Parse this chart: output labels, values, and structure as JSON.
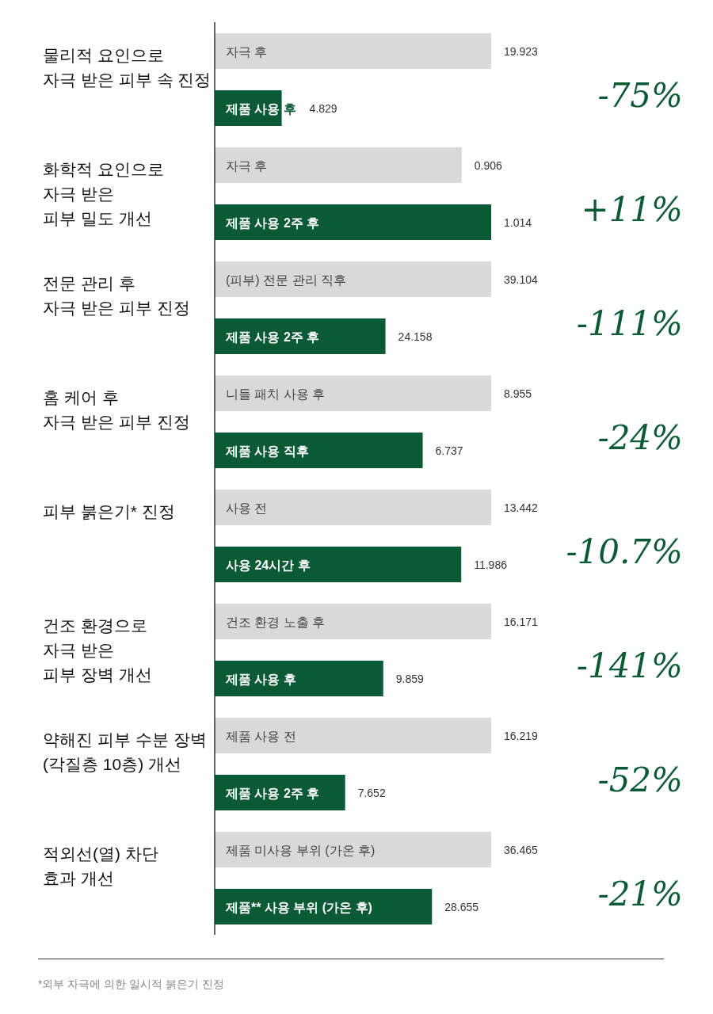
{
  "chart_data": [
    {
      "type": "bar",
      "orientation": "horizontal",
      "title": "물리적 요인으로\n자극 받은 피부 속 진정",
      "categories": [
        "자극 후",
        "제품 사용 후"
      ],
      "values": [
        19.923,
        4.829
      ],
      "colors": [
        "#d9d9d9",
        "#0b5a36"
      ],
      "data_labels": true,
      "annotations": [
        "-75%"
      ]
    },
    {
      "type": "bar",
      "orientation": "horizontal",
      "title": "화학적 요인으로\n자극 받은\n피부 밀도 개선",
      "categories": [
        "자극 후",
        "제품 사용 2주 후"
      ],
      "values": [
        0.906,
        1.014
      ],
      "colors": [
        "#d9d9d9",
        "#0b5a36"
      ],
      "data_labels": true,
      "annotations": [
        "+11%"
      ]
    },
    {
      "type": "bar",
      "orientation": "horizontal",
      "title": "전문 관리 후\n자극 받은 피부 진정",
      "categories": [
        "(피부) 전문 관리 직후",
        "제품 사용 2주 후"
      ],
      "values": [
        39.104,
        24.158
      ],
      "colors": [
        "#d9d9d9",
        "#0b5a36"
      ],
      "data_labels": true,
      "annotations": [
        "-111%"
      ]
    },
    {
      "type": "bar",
      "orientation": "horizontal",
      "title": "홈 케어 후\n자극 받은 피부 진정",
      "categories": [
        "니들 패치 사용 후",
        "제품 사용 직후"
      ],
      "values": [
        8.955,
        6.737
      ],
      "colors": [
        "#d9d9d9",
        "#0b5a36"
      ],
      "data_labels": true,
      "annotations": [
        "-24%"
      ]
    },
    {
      "type": "bar",
      "orientation": "horizontal",
      "title": "피부 붉은기* 진정",
      "categories": [
        "사용 전",
        "사용 24시간 후"
      ],
      "values": [
        13.442,
        11.986
      ],
      "colors": [
        "#d9d9d9",
        "#0b5a36"
      ],
      "data_labels": true,
      "annotations": [
        "-10.7%"
      ]
    },
    {
      "type": "bar",
      "orientation": "horizontal",
      "title": "건조 환경으로\n자극 받은\n피부 장벽 개선",
      "categories": [
        "건조 환경 노출 후",
        "제품 사용 후"
      ],
      "values": [
        16.171,
        9.859
      ],
      "colors": [
        "#d9d9d9",
        "#0b5a36"
      ],
      "data_labels": true,
      "annotations": [
        "-141%"
      ]
    },
    {
      "type": "bar",
      "orientation": "horizontal",
      "title": "약해진 피부 수분 장벽\n(각질층 10층) 개선",
      "categories": [
        "제품 사용 전",
        "제품 사용 2주 후"
      ],
      "values": [
        16.219,
        7.652
      ],
      "colors": [
        "#d9d9d9",
        "#0b5a36"
      ],
      "data_labels": true,
      "annotations": [
        "-52%"
      ]
    },
    {
      "type": "bar",
      "orientation": "horizontal",
      "title": "적외선(열) 차단\n효과 개선",
      "categories": [
        "제품 미사용 부위 (가온 후)",
        "제품** 사용 부위 (가온 후)"
      ],
      "values": [
        36.465,
        28.655
      ],
      "colors": [
        "#d9d9d9",
        "#0b5a36"
      ],
      "data_labels": true,
      "annotations": [
        "-21%"
      ]
    },
    {
      "type": "other",
      "annotations": [
        "*외부 자극에 의한 일시적 붉은기 진정"
      ]
    }
  ]
}
